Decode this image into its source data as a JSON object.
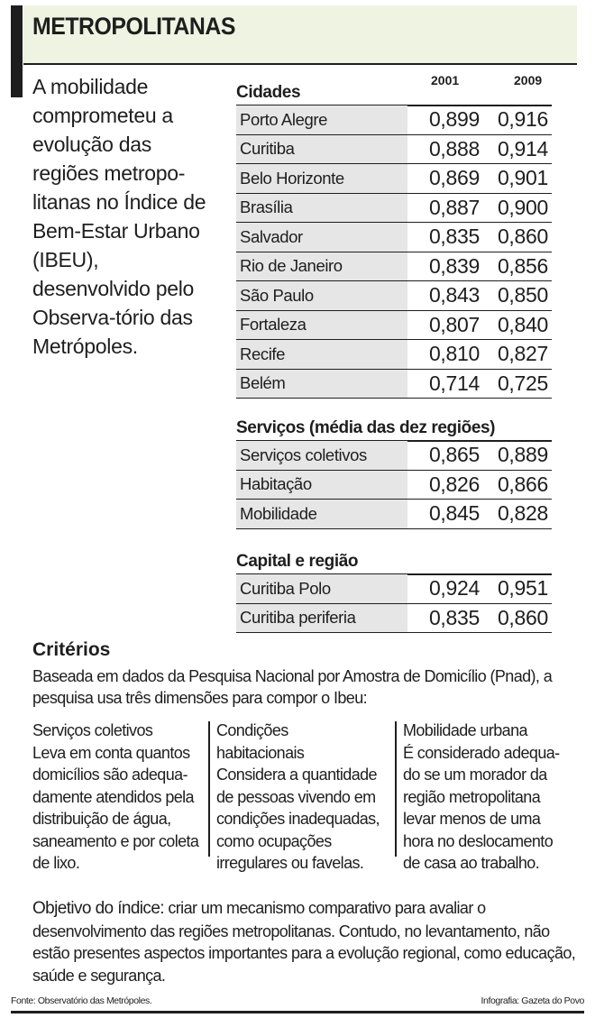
{
  "title": "METROPOLITANAS",
  "intro": "A mobilidade comprometeu a evolução das regiões metropo-litanas no Índice de Bem-Estar Urbano (IBEU), desenvolvido pelo Observa-tório das Metrópoles.",
  "colors": {
    "title_bg": "#eef3e2",
    "name_cell_bg": "#e6e6e6",
    "ink": "#1e1e1e"
  },
  "chart_data": {
    "type": "table",
    "columns": [
      "2001",
      "2009"
    ],
    "sections": [
      {
        "title": "Cidades",
        "rows": [
          {
            "label": "Porto Alegre",
            "values": [
              "0,899",
              "0,916"
            ]
          },
          {
            "label": "Curitiba",
            "values": [
              "0,888",
              "0,914"
            ]
          },
          {
            "label": "Belo Horizonte",
            "values": [
              "0,869",
              "0,901"
            ]
          },
          {
            "label": "Brasília",
            "values": [
              "0,887",
              "0,900"
            ]
          },
          {
            "label": "Salvador",
            "values": [
              "0,835",
              "0,860"
            ]
          },
          {
            "label": "Rio de Janeiro",
            "values": [
              "0,839",
              "0,856"
            ]
          },
          {
            "label": "São Paulo",
            "values": [
              "0,843",
              "0,850"
            ]
          },
          {
            "label": "Fortaleza",
            "values": [
              "0,807",
              "0,840"
            ]
          },
          {
            "label": "Recife",
            "values": [
              "0,810",
              "0,827"
            ]
          },
          {
            "label": "Belém",
            "values": [
              "0,714",
              "0,725"
            ]
          }
        ]
      },
      {
        "title": "Serviços (média das dez regiões)",
        "rows": [
          {
            "label": "Serviços coletivos",
            "values": [
              "0,865",
              "0,889"
            ]
          },
          {
            "label": "Habitação",
            "values": [
              "0,826",
              "0,866"
            ]
          },
          {
            "label": "Mobilidade",
            "values": [
              "0,845",
              "0,828"
            ]
          }
        ]
      },
      {
        "title": "Capital e região",
        "rows": [
          {
            "label": "Curitiba Polo",
            "values": [
              "0,924",
              "0,951"
            ]
          },
          {
            "label": "Curitiba periferia",
            "values": [
              "0,835",
              "0,860"
            ]
          }
        ]
      }
    ]
  },
  "criteria": {
    "title": "Critérios",
    "text": "Baseada em dados da Pesquisa Nacional por Amostra de Domicílio (Pnad), a pesquisa usa três dimensões para compor o Ibeu:",
    "columns": [
      {
        "heading": "Serviços coletivos",
        "text": "Leva em conta quantos domicílios são adequa-damente atendidos pela distribuição de água, saneamento e por coleta de lixo."
      },
      {
        "heading": "Condições habitacionais",
        "text": "Considera a quantidade de pessoas vivendo em condições inadequadas, como ocupações irregulares ou favelas."
      },
      {
        "heading": "Mobilidade urbana",
        "text": "É considerado adequa-do se um morador da região metropolitana levar menos de uma hora no deslocamento de casa ao trabalho."
      }
    ]
  },
  "objective": {
    "label": "Objetivo do índice:",
    "text": " criar um mecanismo comparativo para avaliar o desenvolvimento das regiões metropolitanas. Contudo, no levantamento, não estão presentes aspectos importantes para a evolução regional, como educação, saúde e segurança."
  },
  "footer": {
    "source": "Fonte: Observatório das Metrópoles.",
    "credit": "Infografia: Gazeta do Povo"
  }
}
